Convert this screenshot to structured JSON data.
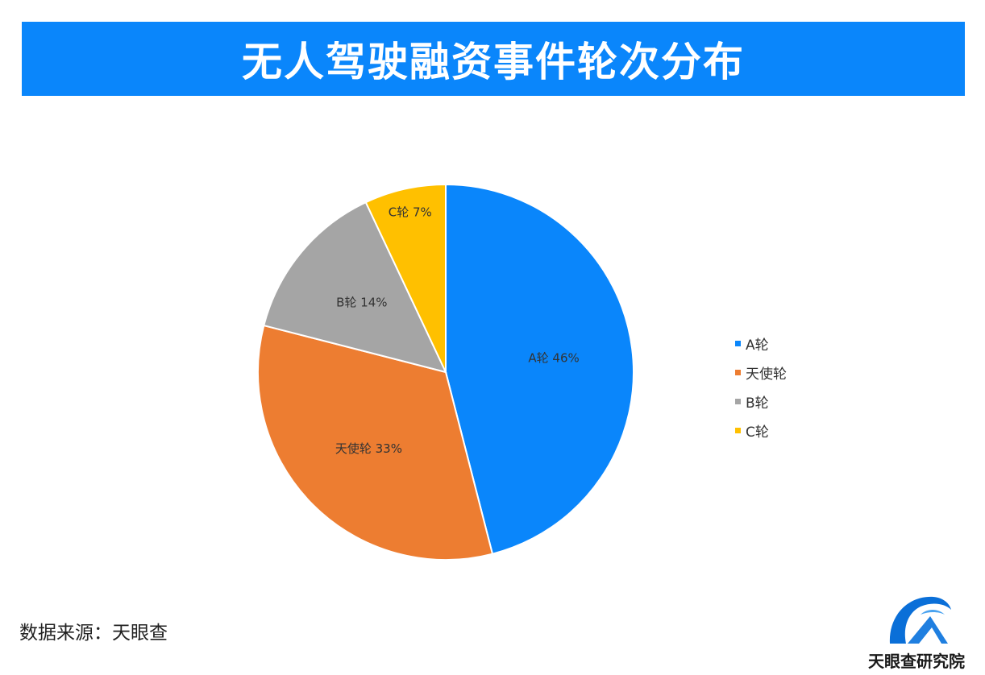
{
  "header": {
    "title": "无人驾驶融资事件轮次分布"
  },
  "chart_data": {
    "type": "pie",
    "categories": [
      "A轮",
      "天使轮",
      "B轮",
      "C轮"
    ],
    "values": [
      46,
      33,
      14,
      7
    ],
    "slice_labels": [
      "A轮 46%",
      "天使轮 33%",
      "B轮 14%",
      "C轮 7%"
    ],
    "colors": [
      "#0a86fb",
      "#ed7d31",
      "#a5a5a5",
      "#ffc000"
    ],
    "title": "无人驾驶融资事件轮次分布",
    "legend_position": "right"
  },
  "legend": {
    "items": [
      {
        "label": "A轮",
        "color": "#0a86fb"
      },
      {
        "label": "天使轮",
        "color": "#ed7d31"
      },
      {
        "label": "B轮",
        "color": "#a5a5a5"
      },
      {
        "label": "C轮",
        "color": "#ffc000"
      }
    ]
  },
  "footer": {
    "source": "数据来源：天眼查",
    "logo_text": "天眼查研究院"
  }
}
